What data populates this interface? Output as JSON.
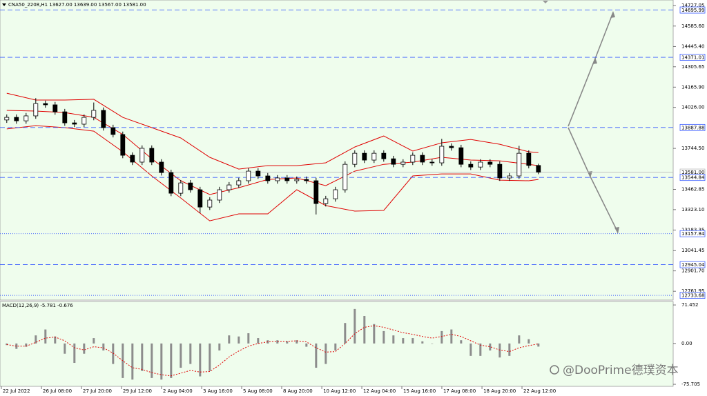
{
  "chart_data": [
    {
      "type": "candlestick",
      "title": "CNA50_2208,H1  13627.00 13639.00 13567.00 13581.00",
      "color": "#000000",
      "xlim": [
        0,
        69.64
      ],
      "ylim": [
        12701,
        14765
      ],
      "yticks": [
        14727.05,
        {
          "value": 14585.6,
          "label": "14585.60"
        },
        {
          "value": 14445.4,
          "label": "14445.40"
        },
        14305.65,
        {
          "value": 14165.9,
          "label": "14165.90"
        },
        {
          "value": 14026,
          "label": "14026.00"
        },
        {
          "value": 13744.5,
          "label": "13744.50"
        },
        13462.85,
        {
          "value": 13323.1,
          "label": "13323.10"
        },
        13183.35,
        13041.45,
        {
          "value": 12901.7,
          "label": "12901.70"
        },
        12761.95
      ],
      "x": [
        0.7,
        1.7,
        2.7,
        3.7,
        4.7,
        5.7,
        6.7,
        7.7,
        8.7,
        9.7,
        10.7,
        11.7,
        12.7,
        13.7,
        14.7,
        15.7,
        16.7,
        17.7,
        18.7,
        19.7,
        20.7,
        21.7,
        22.7,
        23.7,
        24.7,
        25.7,
        26.7,
        27.7,
        28.7,
        29.7,
        30.7,
        31.7,
        32.7,
        33.7,
        34.7,
        35.7,
        36.7,
        37.7,
        38.7,
        39.7,
        40.7,
        41.7,
        42.7,
        43.7,
        44.7,
        45.7,
        46.7,
        47.7,
        48.7,
        49.7,
        50.7,
        51.7,
        52.7,
        53.7,
        54.7,
        55.7
      ],
      "open": [
        13940,
        13958,
        13934,
        13968,
        14053,
        14044,
        13996,
        13920,
        13911,
        13958,
        14006,
        13887,
        13840,
        13697,
        13650,
        13745,
        13650,
        13578,
        13436,
        13507,
        13460,
        13341,
        13389,
        13460,
        13493,
        13522,
        13588,
        13555,
        13522,
        13541,
        13522,
        13531,
        13522,
        13365,
        13398,
        13460,
        13635,
        13711,
        13664,
        13711,
        13673,
        13635,
        13650,
        13697,
        13650,
        13645,
        13759,
        13749,
        13635,
        13616,
        13650,
        13635,
        13541,
        13555,
        13711,
        13627
      ],
      "high": [
        13978,
        13978,
        13988,
        14090,
        14073,
        14064,
        14016,
        13940,
        13978,
        14060,
        14026,
        13907,
        13860,
        13717,
        13765,
        13765,
        13670,
        13598,
        13527,
        13527,
        13480,
        13409,
        13480,
        13513,
        13542,
        13608,
        13608,
        13575,
        13561,
        13561,
        13551,
        13551,
        13542,
        13418,
        13480,
        13655,
        13731,
        13731,
        13731,
        13731,
        13693,
        13670,
        13717,
        13717,
        13670,
        13810,
        13779,
        13769,
        13655,
        13670,
        13670,
        13655,
        13575,
        13762,
        13731,
        13639
      ],
      "low": [
        13920,
        13914,
        13914,
        13948,
        14024,
        13976,
        13900,
        13891,
        13891,
        13938,
        13867,
        13820,
        13677,
        13630,
        13630,
        13630,
        13558,
        13416,
        13416,
        13440,
        13300,
        13321,
        13369,
        13440,
        13473,
        13502,
        13535,
        13502,
        13502,
        13502,
        13502,
        13502,
        13290,
        13345,
        13378,
        13440,
        13615,
        13644,
        13644,
        13653,
        13615,
        13615,
        13630,
        13630,
        13625,
        13625,
        13729,
        13615,
        13596,
        13596,
        13615,
        13521,
        13521,
        13535,
        13607,
        13567
      ],
      "close": [
        13958,
        13934,
        13968,
        14053,
        14044,
        13996,
        13920,
        13911,
        13958,
        14006,
        13887,
        13840,
        13697,
        13650,
        13745,
        13650,
        13578,
        13436,
        13507,
        13460,
        13341,
        13389,
        13460,
        13493,
        13522,
        13588,
        13555,
        13522,
        13541,
        13522,
        13531,
        13522,
        13365,
        13398,
        13460,
        13635,
        13711,
        13664,
        13711,
        13673,
        13635,
        13650,
        13697,
        13650,
        13645,
        13759,
        13749,
        13635,
        13616,
        13650,
        13635,
        13541,
        13555,
        13711,
        13627,
        13581
      ],
      "overlays": [
        {
          "color": "#e00000",
          "x": [
            0.7,
            3.7,
            6.7,
            9.7,
            12.7,
            15.7,
            18.7,
            21.7,
            24.7,
            27.7,
            30.7,
            33.7,
            36.7,
            39.7,
            42.7,
            45.7,
            48.7,
            51.7,
            54.7,
            55.7
          ],
          "values": [
            14124,
            14077,
            14077,
            14082,
            13958,
            13887,
            13816,
            13683,
            13602,
            13626,
            13626,
            13645,
            13754,
            13830,
            13726,
            13783,
            13806,
            13773,
            13721,
            13716
          ]
        },
        {
          "color": "#e00000",
          "x": [
            0.7,
            3.7,
            6.7,
            9.7,
            12.7,
            15.7,
            18.7,
            21.7,
            24.7,
            27.7,
            30.7,
            33.7,
            36.7,
            39.7,
            42.7,
            45.7,
            48.7,
            51.7,
            54.7,
            55.7
          ],
          "values": [
            14006,
            14001,
            13991,
            13958,
            13840,
            13673,
            13522,
            13427,
            13474,
            13531,
            13541,
            13488,
            13588,
            13635,
            13650,
            13683,
            13664,
            13659,
            13635,
            13626
          ]
        },
        {
          "color": "#e00000",
          "x": [
            0.7,
            3.7,
            6.7,
            9.7,
            12.7,
            15.7,
            18.7,
            21.7,
            24.7,
            27.7,
            30.7,
            33.7,
            36.7,
            39.7,
            42.7,
            45.7,
            48.7,
            51.7,
            54.7,
            55.7
          ],
          "values": [
            13878,
            13901,
            13887,
            13863,
            13721,
            13555,
            13403,
            13246,
            13294,
            13294,
            13460,
            13351,
            13313,
            13318,
            13555,
            13569,
            13569,
            13526,
            13522,
            13531
          ]
        }
      ],
      "levels": [
        {
          "value": 14695.99,
          "label": "14695.99",
          "style": "dashed",
          "color": "#3a5cff"
        },
        {
          "value": 14371.01,
          "label": "14371.01",
          "style": "dashed",
          "color": "#3a5cff"
        },
        {
          "value": 13887.88,
          "label": "13887.88",
          "style": "dashed",
          "color": "#3a5cff"
        },
        {
          "value": 13581,
          "label": "13581.00",
          "style": "solid",
          "color": "#b8b8b8"
        },
        {
          "value": 13544.84,
          "label": "13544.84",
          "style": "dashed",
          "color": "#3a5cff"
        },
        {
          "value": 13157.84,
          "label": "13157.84",
          "style": "dotted",
          "color": "#3a5cff"
        },
        {
          "value": 12945.04,
          "label": "12945.04",
          "style": "dashed",
          "color": "#3a5cff"
        },
        {
          "value": 12733.68,
          "label": "12733.68",
          "style": "dotted",
          "color": "#3a5cff"
        }
      ]
    },
    {
      "type": "macd",
      "title": "MACD(12,26,9) -5.781 -0.676",
      "xlim": [
        0,
        69.64
      ],
      "ylim": [
        -79.5,
        77.9
      ],
      "yticks": [
        71.452,
        {
          "value": 0,
          "label": "0.00"
        },
        -75.705
      ],
      "xticks": [
        {
          "value": 0.14,
          "label": "22 Jul 2022"
        },
        {
          "value": 4.29,
          "label": "26 Jul 08:00"
        },
        {
          "value": 8.43,
          "label": "27 Jul 20:00"
        },
        {
          "value": 12.57,
          "label": "29 Jul 12:00"
        },
        {
          "value": 16.71,
          "label": "2 Aug 04:00"
        },
        {
          "value": 20.86,
          "label": "3 Aug 16:00"
        },
        {
          "value": 25,
          "label": "5 Aug 08:00"
        },
        {
          "value": 29.14,
          "label": "8 Aug 20:00"
        },
        {
          "value": 33.29,
          "label": "10 Aug 12:00"
        },
        {
          "value": 37.43,
          "label": "12 Aug 04:00"
        },
        {
          "value": 41.57,
          "label": "15 Aug 16:00"
        },
        {
          "value": 45.71,
          "label": "17 Aug 08:00"
        },
        {
          "value": 49.86,
          "label": "18 Aug 20:00"
        },
        {
          "value": 54,
          "label": "22 Aug 12:00"
        }
      ],
      "x": [
        0.7,
        1.7,
        2.7,
        3.7,
        4.7,
        5.7,
        6.7,
        7.7,
        8.7,
        9.7,
        10.7,
        11.7,
        12.7,
        13.7,
        14.7,
        15.7,
        16.7,
        17.7,
        18.7,
        19.7,
        20.7,
        21.7,
        22.7,
        23.7,
        24.7,
        25.7,
        26.7,
        27.7,
        28.7,
        29.7,
        30.7,
        31.7,
        32.7,
        33.7,
        34.7,
        35.7,
        36.7,
        37.7,
        38.7,
        39.7,
        40.7,
        41.7,
        42.7,
        43.7,
        44.7,
        45.7,
        46.7,
        47.7,
        48.7,
        49.7,
        50.7,
        51.7,
        52.7,
        53.7,
        54.7,
        55.7
      ],
      "series": [
        {
          "color": "#8c8c8c",
          "values": [
            -3,
            -10,
            -6,
            15,
            26,
            13,
            -19,
            -36,
            -19,
            10,
            -13,
            -38,
            -64,
            -67,
            -51,
            -64,
            -67,
            -64,
            -45,
            -38,
            -61,
            -51,
            -13,
            15,
            13,
            19,
            10,
            6,
            6,
            4,
            6,
            -6,
            -45,
            -38,
            -13,
            38,
            64,
            51,
            36,
            23,
            15,
            10,
            10,
            4,
            0,
            23,
            26,
            6,
            -23,
            -23,
            -13,
            -26,
            -23,
            15,
            8,
            -5.781
          ]
        },
        {
          "color": "#e00000",
          "values": [
            -2,
            -5,
            -5,
            2,
            10,
            12,
            5,
            -8,
            -12,
            -6,
            -8,
            -18,
            -32,
            -45,
            -48,
            -54,
            -58,
            -60,
            -55,
            -50,
            -53,
            -52,
            -40,
            -25,
            -14,
            -5,
            0,
            3,
            4,
            4,
            5,
            3,
            -8,
            -16,
            -15,
            0,
            18,
            30,
            33,
            30,
            25,
            20,
            17,
            13,
            10,
            13,
            17,
            13,
            5,
            -3,
            -6,
            -12,
            -15,
            -8,
            -4,
            -0.676
          ]
        }
      ]
    }
  ],
  "watermark": "@DooPrime德璞资本"
}
